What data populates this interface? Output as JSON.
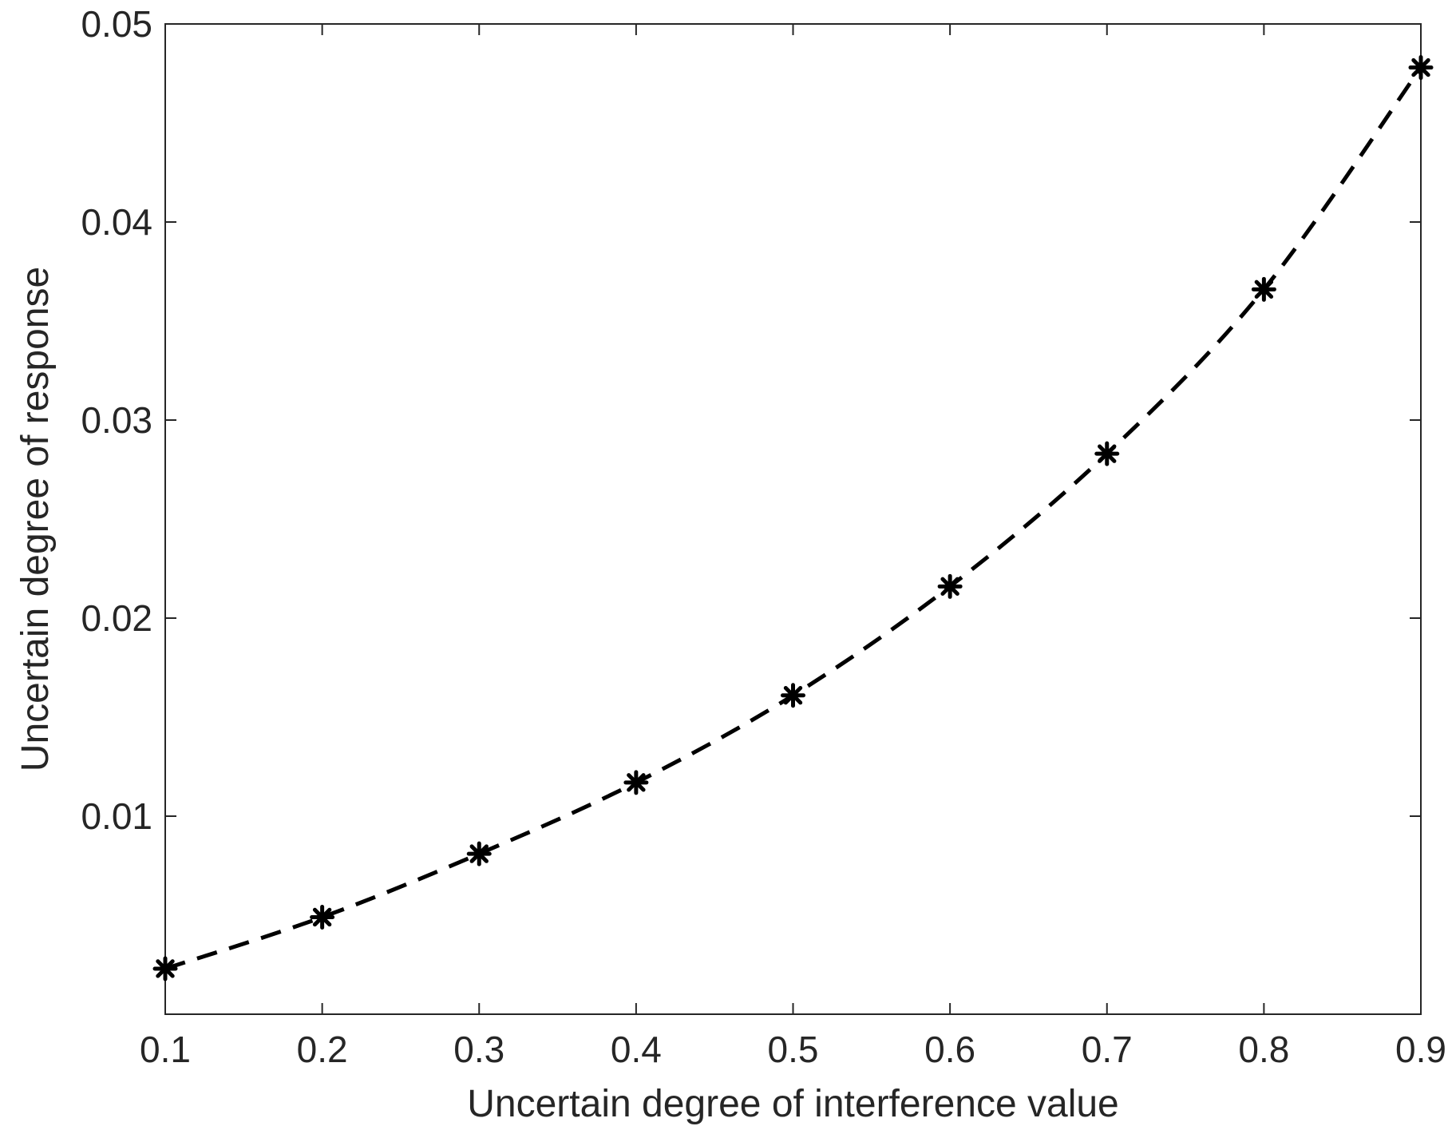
{
  "chart_data": {
    "type": "line",
    "title": "",
    "xlabel": "Uncertain degree of interference value",
    "ylabel": "Uncertain degree of response",
    "xlim": [
      0.1,
      0.9
    ],
    "ylim": [
      0,
      0.05
    ],
    "xticks": [
      "0.1",
      "0.2",
      "0.3",
      "0.4",
      "0.5",
      "0.6",
      "0.7",
      "0.8",
      "0.9"
    ],
    "yticks": [
      "0.01",
      "0.02",
      "0.03",
      "0.04",
      "0.05"
    ],
    "grid": false,
    "legend": "none",
    "line_style": "dashed",
    "marker": "asterisk",
    "color": "#000000",
    "series": [
      {
        "x": [
          0.1,
          0.2,
          0.3,
          0.4,
          0.5,
          0.6,
          0.7,
          0.8,
          0.9
        ],
        "values": [
          0.0023,
          0.0049,
          0.0081,
          0.0117,
          0.0161,
          0.0216,
          0.0283,
          0.0366,
          0.0478
        ]
      }
    ]
  }
}
